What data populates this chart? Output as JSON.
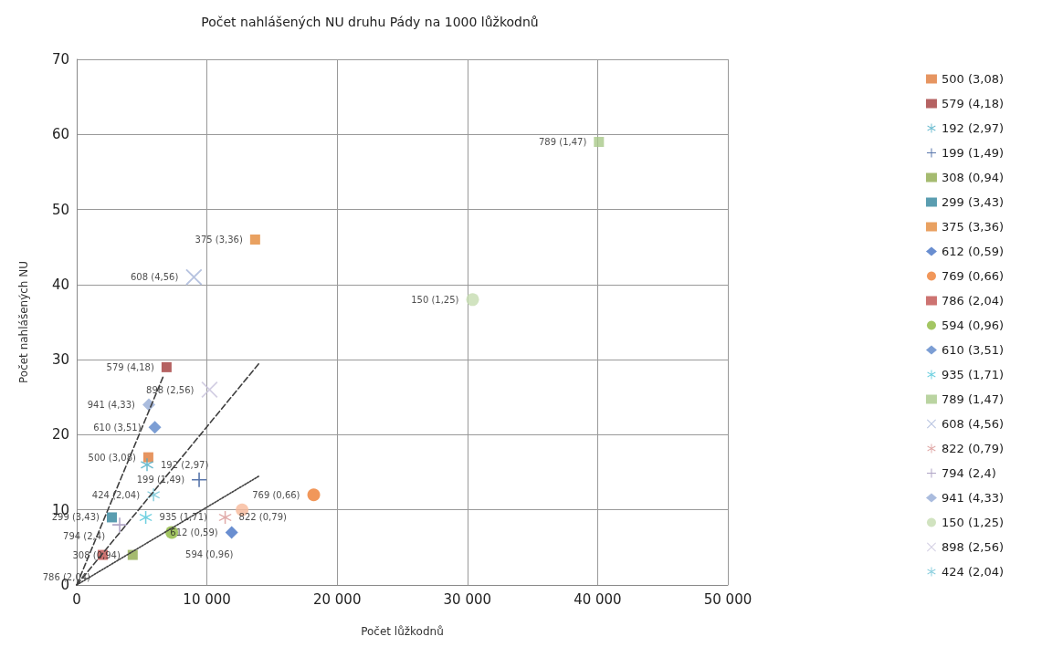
{
  "chart_data": {
    "type": "scatter",
    "title": "Počet nahlášených NU druhu Pády na 1000 lůžkodnů",
    "xlabel": "Počet lůžkodnů",
    "ylabel": "Počet nahlášených NU",
    "xlim": [
      0,
      50000
    ],
    "ylim": [
      0,
      70
    ],
    "xticks": [
      0,
      {
        "value": 10000,
        "label": "10 000"
      },
      {
        "value": 20000,
        "label": "20 000"
      },
      {
        "value": 30000,
        "label": "30 000"
      },
      {
        "value": 40000,
        "label": "40 000"
      },
      {
        "value": 50000,
        "label": "50 000"
      }
    ],
    "yticks": [
      0,
      10,
      20,
      30,
      40,
      50,
      60,
      70
    ],
    "grid": true,
    "legend": "right",
    "series": [
      {
        "name": "500 (3,08)",
        "color": "#e07b39",
        "marker": "square",
        "x": [
          5500
        ],
        "values": [
          17
        ]
      },
      {
        "name": "579 (4,18)",
        "color": "#a33b3b",
        "marker": "square",
        "x": [
          6900
        ],
        "values": [
          29
        ]
      },
      {
        "name": "192 (2,97)",
        "color": "#4bacc6",
        "marker": "star",
        "x": [
          5400
        ],
        "values": [
          16
        ]
      },
      {
        "name": "199 (1,49)",
        "color": "#2f5597",
        "marker": "cross",
        "x": [
          9400
        ],
        "values": [
          14
        ]
      },
      {
        "name": "308 (0,94)",
        "color": "#8faa4c",
        "marker": "square",
        "x": [
          4300
        ],
        "values": [
          4
        ]
      },
      {
        "name": "299 (3,43)",
        "color": "#31859c",
        "marker": "square",
        "x": [
          2700
        ],
        "values": [
          9
        ]
      },
      {
        "name": "375 (3,36)",
        "color": "#e48a3a",
        "marker": "square",
        "x": [
          13700
        ],
        "values": [
          46
        ]
      },
      {
        "name": "612 (0,59)",
        "color": "#4472c4",
        "marker": "diamond",
        "x": [
          11900
        ],
        "values": [
          7
        ]
      },
      {
        "name": "769 (0,66)",
        "color": "#ed7d31",
        "marker": "circle",
        "x": [
          18200
        ],
        "values": [
          12
        ]
      },
      {
        "name": "786 (2,04)",
        "color": "#c0504d",
        "marker": "square",
        "x": [
          2000
        ],
        "values": [
          4
        ]
      },
      {
        "name": "594 (0,96)",
        "color": "#8cb83c",
        "marker": "circle",
        "x": [
          7300
        ],
        "values": [
          7
        ]
      },
      {
        "name": "610 (3,51)",
        "color": "#5b86c9",
        "marker": "diamond",
        "x": [
          6000
        ],
        "values": [
          21
        ]
      },
      {
        "name": "935 (1,71)",
        "color": "#4bc4d8",
        "marker": "star",
        "x": [
          5300
        ],
        "values": [
          9
        ]
      },
      {
        "name": "789 (1,47)",
        "color": "#a9c98a",
        "marker": "square",
        "x": [
          40100
        ],
        "values": [
          59
        ]
      },
      {
        "name": "608 (4,56)",
        "color": "#a5b4d8",
        "marker": "x",
        "x": [
          9000
        ],
        "values": [
          41
        ]
      },
      {
        "name": "822 (0,79)",
        "color": "#d99594",
        "marker": "star",
        "x": [
          11400
        ],
        "values": [
          9
        ]
      },
      {
        "name": "794 (2,4)",
        "color": "#9c8fb8",
        "marker": "cross",
        "x": [
          3300
        ],
        "values": [
          8
        ]
      },
      {
        "name": "941 (4,33)",
        "color": "#95abd6",
        "marker": "diamond",
        "x": [
          5540
        ],
        "values": [
          24
        ]
      },
      {
        "name": "150 (1,25)",
        "color": "#c5dcb0",
        "marker": "circle",
        "x": [
          30400
        ],
        "values": [
          38
        ]
      },
      {
        "name": "898 (2,56)",
        "color": "#c8c3dc",
        "marker": "x",
        "x": [
          10200
        ],
        "values": [
          26
        ]
      },
      {
        "name": "424 (2,04)",
        "color": "#6fc3d6",
        "marker": "star",
        "x": [
          5900
        ],
        "values": [
          12
        ]
      },
      {
        "color": "#f8b99a",
        "marker": "circle",
        "x": [
          12700
        ],
        "values": [
          10
        ]
      },
      {
        "type": "line",
        "color": "#404040",
        "marker": "none",
        "line_style": "dashed",
        "x": [
          0,
          6700
        ],
        "values": [
          0,
          28
        ]
      },
      {
        "type": "line",
        "color": "#404040",
        "marker": "none",
        "line_style": "dashed",
        "x": [
          0,
          14000
        ],
        "values": [
          0,
          29.5
        ]
      },
      {
        "type": "line",
        "color": "#404040",
        "marker": "none",
        "line_style": "dotted",
        "x": [
          0,
          14000
        ],
        "values": [
          0,
          14.5
        ]
      }
    ]
  }
}
